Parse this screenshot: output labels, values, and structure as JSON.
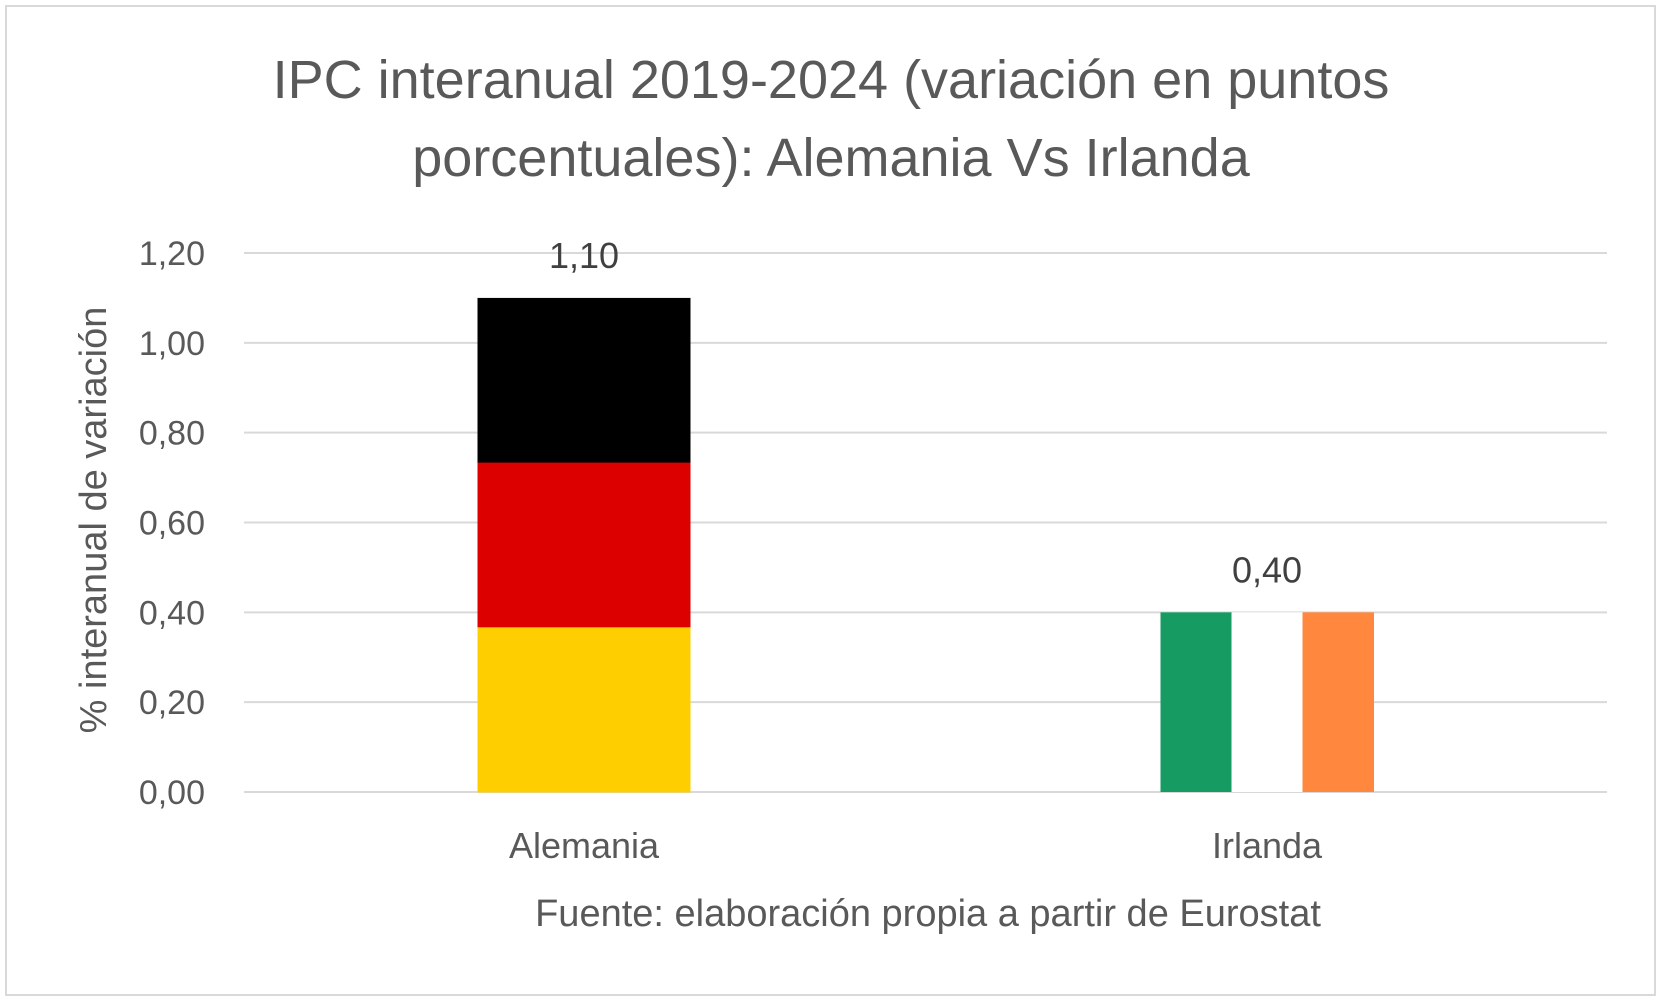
{
  "chart_data": {
    "type": "bar",
    "title_lines": [
      "IPC interanual 2019-2024 (variación en puntos",
      "porcentuales): Alemania Vs Irlanda"
    ],
    "ylabel": "% interanual de variación",
    "xlabel": "Fuente: elaboración propia a partir de Eurostat",
    "categories": [
      "Alemania",
      "Irlanda"
    ],
    "values": [
      1.1,
      0.4
    ],
    "data_labels": [
      "1,10",
      "0,40"
    ],
    "ylim": [
      0,
      1.2
    ],
    "yticks": [
      0,
      0.2,
      0.4,
      0.6,
      0.8,
      1.0,
      1.2
    ],
    "ytick_labels": [
      "0,00",
      "0,20",
      "0,40",
      "0,60",
      "0,80",
      "1,00",
      "1,20"
    ],
    "grid": true,
    "legend": "none",
    "bar_fills": [
      {
        "category": "Alemania",
        "pattern": "flag-horizontal",
        "colors": [
          "#000000",
          "#dd0000",
          "#ffce00"
        ]
      },
      {
        "category": "Irlanda",
        "pattern": "flag-vertical",
        "colors": [
          "#169b62",
          "#ffffff",
          "#ff883e"
        ]
      }
    ]
  }
}
